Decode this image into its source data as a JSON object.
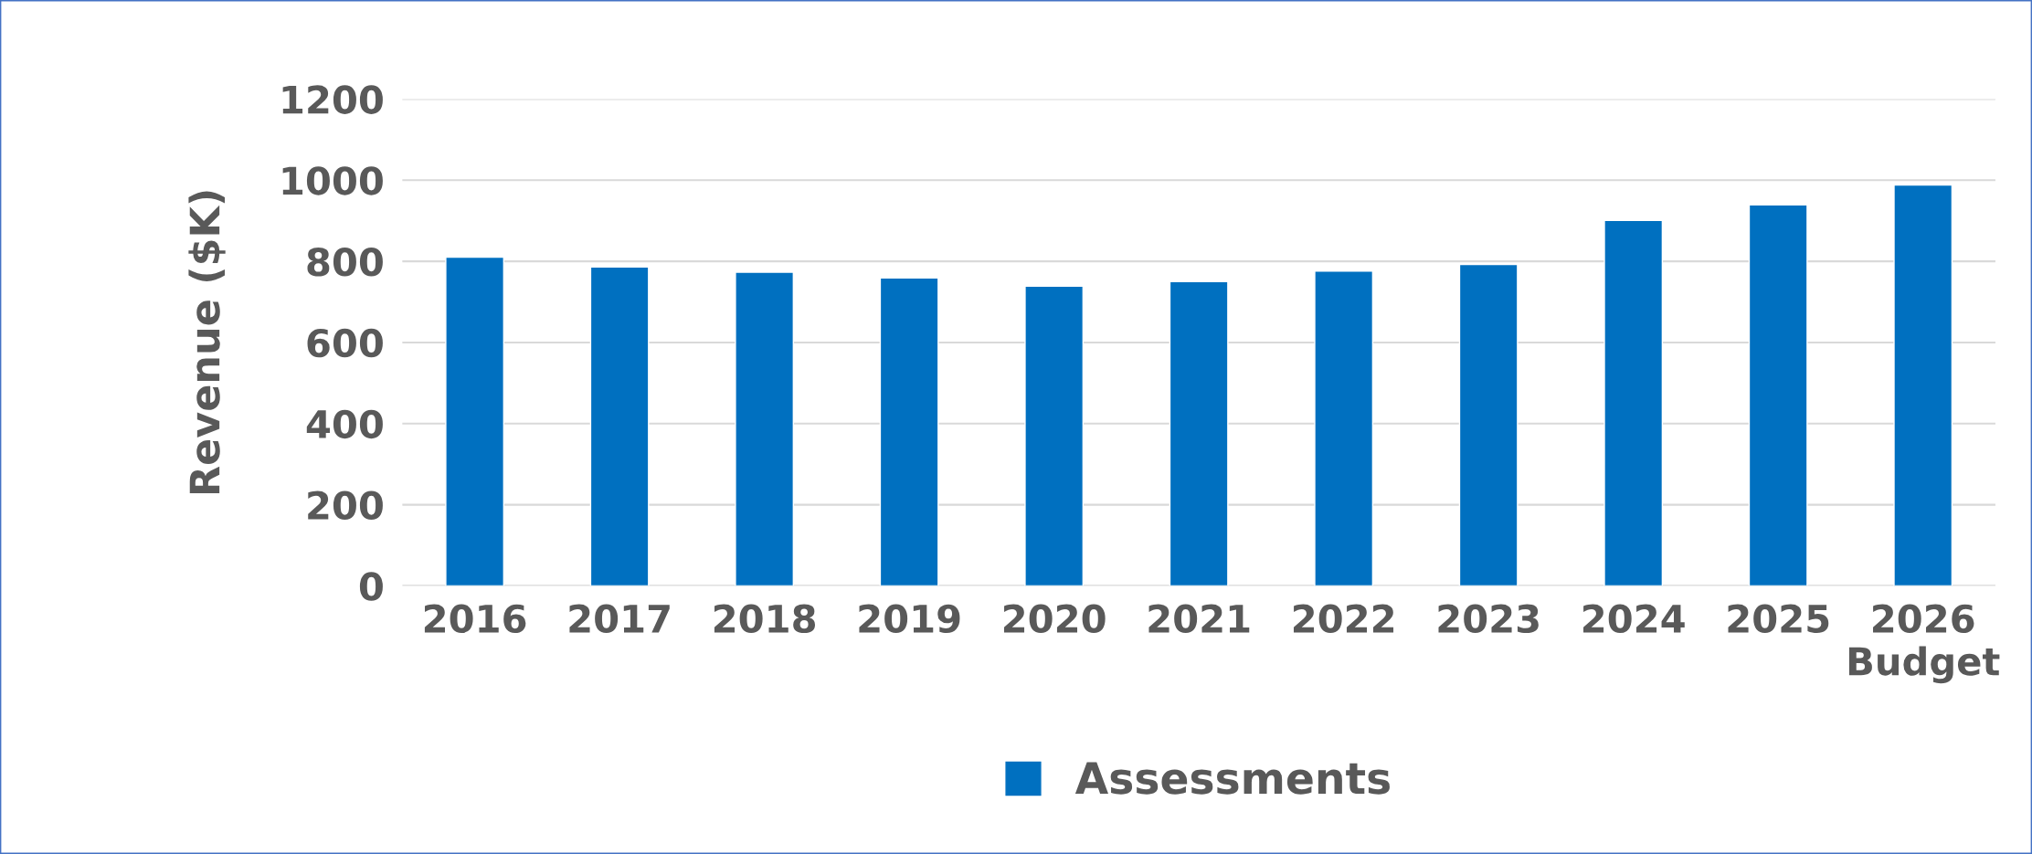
{
  "chart_data": {
    "type": "bar",
    "ylabel": "Revenue ($K)",
    "categories": [
      "2016",
      "2017",
      "2018",
      "2019",
      "2020",
      "2021",
      "2022",
      "2023",
      "2024",
      "2025",
      "2026\nBudget"
    ],
    "series": [
      {
        "name": "Assessments",
        "color": "#0070c0",
        "values": [
          810,
          786,
          773,
          759,
          739,
          750,
          776,
          792,
          901,
          939,
          988
        ]
      }
    ],
    "ylim": [
      0,
      1200
    ],
    "yticks": [
      0,
      200,
      400,
      600,
      800,
      1000,
      1200
    ],
    "grid": "y",
    "legend": "bottom"
  }
}
